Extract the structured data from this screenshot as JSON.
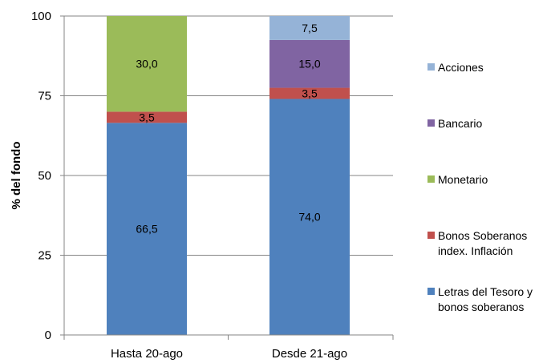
{
  "chart_data": {
    "type": "bar",
    "stacked": true,
    "categories": [
      "Hasta 20-ago",
      "Desde 21-ago"
    ],
    "series": [
      {
        "name": "Letras del Tesoro y bonos soberanos",
        "values": [
          66.5,
          74.0
        ],
        "labels": [
          "66,5",
          "74,0"
        ],
        "color": "#4F81BD"
      },
      {
        "name": "Bonos Soberanos index. Inflación",
        "values": [
          3.5,
          3.5
        ],
        "labels": [
          "3,5",
          "3,5"
        ],
        "color": "#C0504D"
      },
      {
        "name": "Monetario",
        "values": [
          30.0,
          0
        ],
        "labels": [
          "30,0",
          ""
        ],
        "color": "#9BBB59"
      },
      {
        "name": "Bancario",
        "values": [
          0,
          15.0
        ],
        "labels": [
          "",
          "15,0"
        ],
        "color": "#8064A2"
      },
      {
        "name": "Acciones",
        "values": [
          0,
          7.5
        ],
        "labels": [
          "",
          "7,5"
        ],
        "color": "#95B3D7"
      }
    ],
    "legend": {
      "position": "right",
      "entries": [
        {
          "lines": [
            "Acciones"
          ],
          "color": "#95B3D7"
        },
        {
          "lines": [
            "Bancario"
          ],
          "color": "#8064A2"
        },
        {
          "lines": [
            "Monetario"
          ],
          "color": "#9BBB59"
        },
        {
          "lines": [
            "Bonos Soberanos",
            "index. Inflación"
          ],
          "color": "#C0504D"
        },
        {
          "lines": [
            "Letras del Tesoro y",
            "bonos soberanos"
          ],
          "color": "#4F81BD"
        }
      ]
    },
    "ylabel": "% del fondo",
    "xlabel": "",
    "ylim": [
      0,
      100
    ],
    "yticks": [
      0,
      25,
      50,
      75,
      100
    ],
    "grid": true
  }
}
